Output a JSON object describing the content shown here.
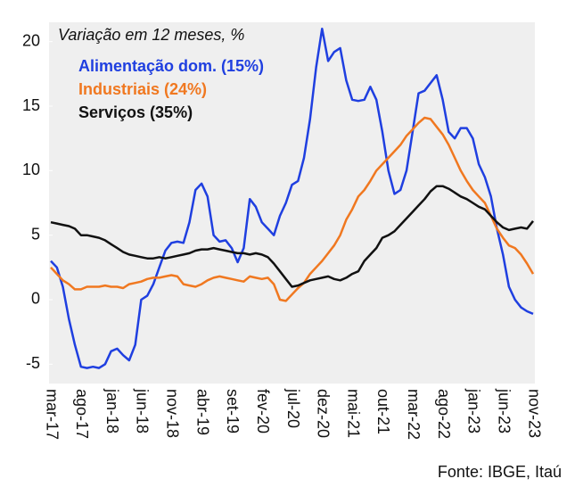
{
  "chart_data": {
    "type": "line",
    "title": "Variação em 12 meses, %",
    "source": "Fonte: IBGE, Itaú",
    "categories": [
      "mar-17",
      null,
      null,
      null,
      null,
      "ago-17",
      null,
      null,
      null,
      null,
      "jan-18",
      null,
      null,
      null,
      null,
      "jun-18",
      null,
      null,
      null,
      null,
      "nov-18",
      null,
      null,
      null,
      null,
      "abr-19",
      null,
      null,
      null,
      null,
      "set-19",
      null,
      null,
      null,
      null,
      "fev-20",
      null,
      null,
      null,
      null,
      "jul-20",
      null,
      null,
      null,
      null,
      "dez-20",
      null,
      null,
      null,
      null,
      "mai-21",
      null,
      null,
      null,
      null,
      "out-21",
      null,
      null,
      null,
      null,
      "mar-22",
      null,
      null,
      null,
      null,
      "ago-22",
      null,
      null,
      null,
      null,
      "jan-23",
      null,
      null,
      null,
      null,
      "jun-23",
      null,
      null,
      null,
      null,
      "nov-23"
    ],
    "series": [
      {
        "name": "Alimentação dom. (15%)",
        "color": "#1f3fe0",
        "values": [
          3,
          2.5,
          1,
          -1.5,
          -3.5,
          -5.2,
          -5.3,
          -5.2,
          -5.3,
          -5.0,
          -4,
          -3.8,
          -4.3,
          -4.7,
          -3.5,
          0,
          0.3,
          1.2,
          2.5,
          3.8,
          4.4,
          4.5,
          4.4,
          6,
          8.5,
          9,
          8,
          5,
          4.5,
          4.6,
          4,
          2.9,
          4,
          7.8,
          7.2,
          6,
          5.5,
          5,
          6.5,
          7.5,
          8.9,
          9.2,
          11,
          14,
          18,
          21,
          18.5,
          19.2,
          19.5,
          17,
          15.5,
          15.4,
          15.5,
          16.5,
          15.5,
          13,
          10,
          8.2,
          8.5,
          10,
          13,
          16,
          16.2,
          16.8,
          17.4,
          15.5,
          13,
          12.5,
          13.3,
          13.3,
          12.5,
          10.5,
          9.5,
          8,
          5.5,
          3.5,
          1,
          0,
          -0.6,
          -0.9,
          -1.1
        ]
      },
      {
        "name": "Industriais (24%)",
        "color": "#f07820",
        "values": [
          2.5,
          2,
          1.5,
          1.2,
          0.8,
          0.8,
          1,
          1,
          1,
          1.1,
          1,
          1,
          0.9,
          1.2,
          1.3,
          1.4,
          1.6,
          1.7,
          1.7,
          1.8,
          1.9,
          1.8,
          1.2,
          1.1,
          1.0,
          1.2,
          1.5,
          1.7,
          1.8,
          1.7,
          1.6,
          1.5,
          1.4,
          1.8,
          1.7,
          1.6,
          1.7,
          1.2,
          0,
          -0.1,
          0.4,
          0.9,
          1.3,
          2,
          2.5,
          3,
          3.6,
          4.2,
          5,
          6.2,
          7,
          8,
          8.5,
          9.2,
          10,
          10.5,
          11,
          11.5,
          12,
          12.7,
          13.2,
          13.7,
          14.1,
          14,
          13.4,
          12.8,
          12,
          11,
          10,
          9.2,
          8.5,
          8,
          7.5,
          6.5,
          5.5,
          4.8,
          4.2,
          4,
          3.5,
          2.8,
          2
        ]
      },
      {
        "name": "Serviços (35%)",
        "color": "#111111",
        "values": [
          6,
          5.9,
          5.8,
          5.7,
          5.5,
          5.0,
          5.0,
          4.9,
          4.8,
          4.6,
          4.3,
          4.0,
          3.7,
          3.5,
          3.4,
          3.3,
          3.2,
          3.2,
          3.3,
          3.2,
          3.3,
          3.4,
          3.5,
          3.6,
          3.8,
          3.9,
          3.9,
          4.0,
          3.9,
          3.8,
          3.7,
          3.6,
          3.6,
          3.5,
          3.6,
          3.5,
          3.3,
          2.8,
          2.2,
          1.6,
          1.0,
          1.1,
          1.3,
          1.5,
          1.6,
          1.7,
          1.8,
          1.6,
          1.5,
          1.7,
          2.0,
          2.2,
          3.0,
          3.5,
          4.0,
          4.8,
          5.0,
          5.3,
          5.8,
          6.3,
          6.8,
          7.3,
          7.8,
          8.4,
          8.8,
          8.8,
          8.6,
          8.3,
          8.0,
          7.8,
          7.5,
          7.2,
          7.0,
          6.5,
          6.0,
          5.6,
          5.4,
          5.5,
          5.6,
          5.5,
          6.1
        ]
      }
    ],
    "ylim": [
      -6.5,
      21.5
    ],
    "yticks": [
      -5,
      0,
      5,
      10,
      15,
      20
    ]
  }
}
